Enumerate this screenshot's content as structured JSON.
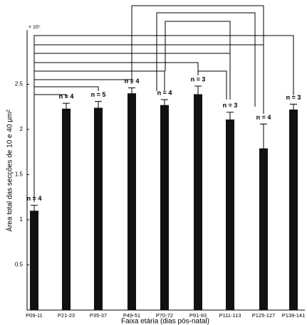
{
  "chart_data": {
    "type": "bar",
    "multiplier": "× 10⁵",
    "y_label": "Área total das secções de 10 e 40 µm²",
    "x_label": "Faixa etária (dias pós-natal)",
    "categories": [
      "P09-11",
      "P21-23",
      "P35-37",
      "P49-51",
      "P70-72",
      "P91-93",
      "P111-113",
      "P125-127",
      "P139-141"
    ],
    "values": [
      1.1,
      2.23,
      2.24,
      2.4,
      2.27,
      2.39,
      2.11,
      1.79,
      2.22
    ],
    "errors": [
      0.06,
      0.06,
      0.07,
      0.06,
      0.06,
      0.09,
      0.08,
      0.27,
      0.06
    ],
    "n_labels": [
      "n = 4",
      "n = 4",
      "n = 5",
      "n = 4",
      "n = 4",
      "n = 3",
      "n = 3",
      "n = 4",
      "n = 3"
    ],
    "color": "#111111",
    "ylim": [
      0,
      3.1
    ],
    "yticks": [
      0.5,
      1,
      1.5,
      2,
      2.5
    ]
  }
}
